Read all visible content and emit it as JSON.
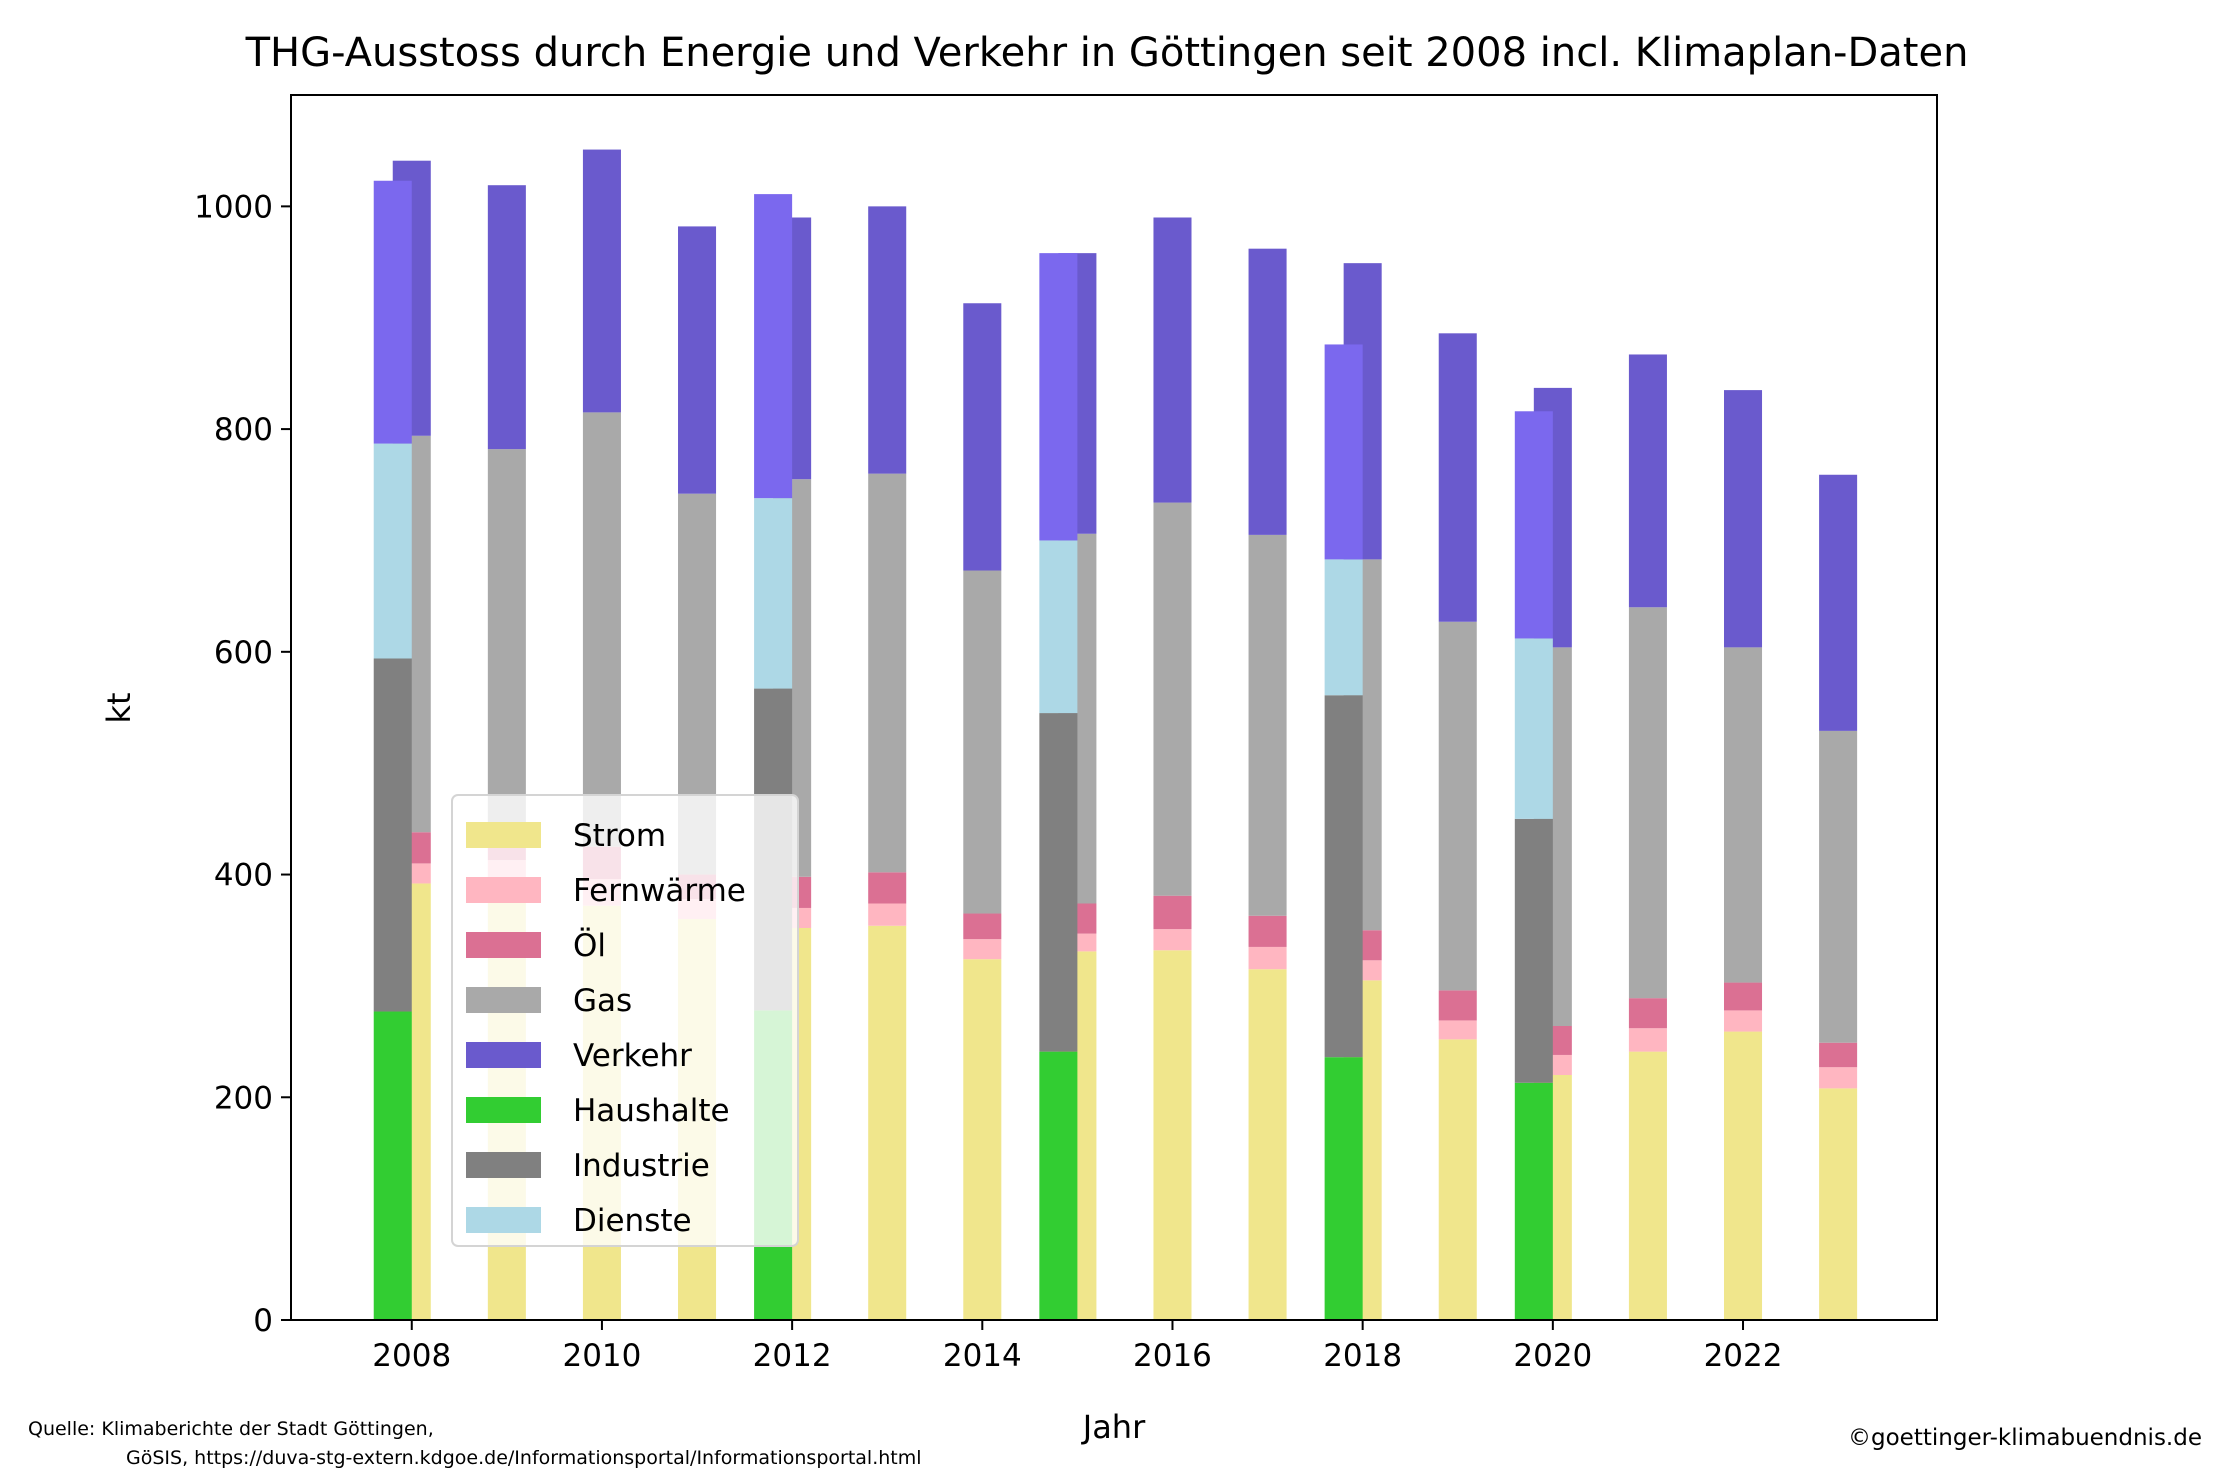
{
  "chart_data": {
    "type": "bar",
    "title": "THG-Ausstoss durch Energie und Verkehr in Göttingen seit 2008 incl. Klimaplan-Daten",
    "xlabel": "Jahr",
    "ylabel": "kt",
    "xlim": [
      2006.73,
      2024.04
    ],
    "ylim": [
      0,
      1100
    ],
    "xticks": [
      2008,
      2010,
      2012,
      2014,
      2016,
      2018,
      2020,
      2022
    ],
    "yticks": [
      0,
      200,
      400,
      600,
      800,
      1000
    ],
    "grid": false,
    "legend_position": "lower-left",
    "colors": {
      "Strom": "#f0e68c",
      "Fernwärme": "#ffb6c1",
      "Öl": "#db7093",
      "Gas": "#a9a9a9",
      "Verkehr": "#6a5acd",
      "Verkehr_sektor": "#7b68ee",
      "Haushalte": "#32cd32",
      "Industrie": "#808080",
      "Dienste": "#add8e6"
    },
    "legend": [
      "Strom",
      "Fernwärme",
      "Öl",
      "Gas",
      "Verkehr",
      "Haushalte",
      "Industrie",
      "Dienste"
    ],
    "energy_series": {
      "stack": [
        "Strom",
        "Fernwärme",
        "Öl",
        "Gas",
        "Verkehr"
      ],
      "years": [
        2008,
        2009,
        2010,
        2011,
        2012,
        2013,
        2014,
        2015,
        2016,
        2017,
        2018,
        2019,
        2020,
        2021,
        2022,
        2023
      ],
      "values": {
        "Strom": [
          392,
          390,
          372,
          360,
          352,
          354,
          324,
          331,
          332,
          315,
          305,
          252,
          220,
          241,
          259,
          208
        ],
        "Fernwärme": [
          18,
          23,
          24,
          18,
          18,
          20,
          18,
          16,
          19,
          20,
          18,
          17,
          18,
          21,
          19,
          19
        ],
        "Öl": [
          28,
          24,
          29,
          22,
          28,
          28,
          23,
          27,
          30,
          28,
          27,
          27,
          26,
          27,
          25,
          22
        ],
        "Gas": [
          356,
          345,
          390,
          342,
          357,
          358,
          308,
          332,
          353,
          342,
          333,
          331,
          340,
          351,
          301,
          280
        ],
        "Verkehr": [
          247,
          237,
          236,
          240,
          235,
          240,
          240,
          252,
          256,
          257,
          266,
          259,
          233,
          227,
          231,
          230
        ]
      }
    },
    "sector_series": {
      "stack": [
        "Haushalte",
        "Industrie",
        "Dienste",
        "Verkehr"
      ],
      "years": [
        2008,
        2012,
        2015,
        2018,
        2020
      ],
      "values": {
        "Haushalte": [
          277,
          278,
          241,
          236,
          213
        ],
        "Industrie": [
          317,
          289,
          304,
          325,
          237
        ],
        "Dienste": [
          193,
          171,
          155,
          122,
          162
        ],
        "Verkehr": [
          236,
          273,
          258,
          193,
          204
        ]
      }
    },
    "source_line1": "Quelle: Klimaberichte der Stadt Göttingen,",
    "source_line2": "GöSIS, https://duva-stg-extern.kdgoe.de/Informationsportal/Informationsportal.html",
    "copyright": "©goettinger-klimabuendnis.de"
  }
}
